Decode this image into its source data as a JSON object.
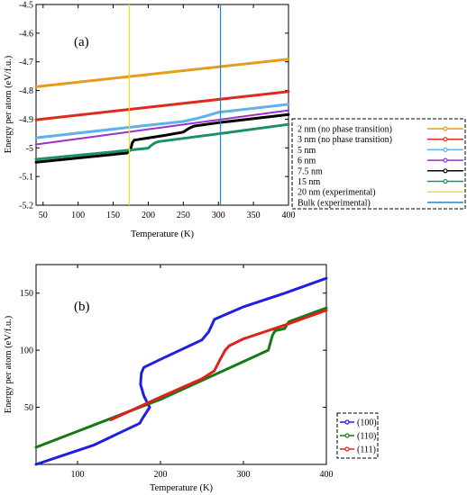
{
  "chart_data": [
    {
      "type": "line",
      "panel_label": "(a)",
      "xlabel": "Temperature (K)",
      "ylabel": "Energy per atom (eV/f.u.)",
      "xlim": [
        40,
        400
      ],
      "ylim": [
        -5.2,
        -4.5
      ],
      "xticks": [
        50,
        100,
        150,
        200,
        250,
        300,
        350,
        400
      ],
      "yticks": [
        -5.2,
        -5.1,
        -5.0,
        -4.9,
        -4.8,
        -4.7,
        -4.6,
        -4.5
      ],
      "xtick_labels": [
        "50",
        "100",
        "150",
        "200",
        "250",
        "300",
        "350",
        "400"
      ],
      "ytick_labels": [
        "-5.2",
        "-5.1",
        "-5",
        "-4.9",
        "-4.8",
        "-4.7",
        "-4.6",
        "-4.5"
      ],
      "legend_placement": "outside right",
      "series": [
        {
          "name": "2 nm (no phase transition)",
          "color": "#e59b1c",
          "width": 3,
          "x": [
            40,
            400
          ],
          "y": [
            -4.787,
            -4.691
          ]
        },
        {
          "name": "3 nm (no phase transition)",
          "color": "#e02a1f",
          "width": 3,
          "x": [
            40,
            400
          ],
          "y": [
            -4.902,
            -4.804
          ]
        },
        {
          "name": "5 nm",
          "color": "#5eb1ea",
          "width": 3,
          "x": [
            40,
            200,
            250,
            270,
            285,
            300,
            400
          ],
          "y": [
            -4.965,
            -4.921,
            -4.908,
            -4.897,
            -4.887,
            -4.876,
            -4.848
          ]
        },
        {
          "name": "6 nm",
          "color": "#9932cc",
          "width": 2,
          "x": [
            40,
            400
          ],
          "y": [
            -4.988,
            -4.869
          ]
        },
        {
          "name": "7.5 nm",
          "color": "#000000",
          "width": 3,
          "x": [
            40,
            170,
            175,
            177,
            180,
            220,
            250,
            258,
            265,
            300,
            400
          ],
          "y": [
            -5.05,
            -5.018,
            -5.005,
            -4.983,
            -4.973,
            -4.958,
            -4.945,
            -4.932,
            -4.924,
            -4.912,
            -4.884
          ]
        },
        {
          "name": "15 nm",
          "color": "#1e8f6b",
          "width": 3,
          "x": [
            40,
            150,
            200,
            205,
            210,
            215,
            300,
            400
          ],
          "y": [
            -5.04,
            -5.014,
            -5.001,
            -4.99,
            -4.982,
            -4.978,
            -4.951,
            -4.918
          ]
        },
        {
          "name": "20 nm (experimental)",
          "color": "#f2dc1c",
          "width": 1.2,
          "vertical": true,
          "x": [
            173
          ]
        },
        {
          "name": "Bulk (experimental)",
          "color": "#2a86c4",
          "width": 1.2,
          "vertical": true,
          "x": [
            303
          ]
        }
      ]
    },
    {
      "type": "line",
      "panel_label": "(b)",
      "xlabel": "Temperature (K)",
      "ylabel": "Energy per atom (eV/f.u.)",
      "xlim": [
        50,
        400
      ],
      "ylim": [
        0,
        175
      ],
      "xticks": [
        100,
        200,
        300,
        400
      ],
      "yticks": [
        50,
        100,
        150
      ],
      "xtick_labels": [
        "100",
        "200",
        "300",
        "400"
      ],
      "ytick_labels": [
        "50",
        "100",
        "150"
      ],
      "legend_placement": "outside right",
      "series": [
        {
          "name": "(100)",
          "color": "#1f1fe0",
          "width": 3,
          "x": [
            50,
            120,
            175,
            178,
            187,
            180,
            176,
            177,
            180,
            200,
            250,
            258,
            262,
            265,
            300,
            350,
            400
          ],
          "y": [
            0,
            17,
            36,
            40,
            50,
            60,
            70,
            80,
            85,
            92,
            109,
            116,
            122,
            127,
            138,
            150,
            163
          ]
        },
        {
          "name": "(110)",
          "color": "#157a15",
          "width": 3,
          "x": [
            50,
            200,
            300,
            330,
            335,
            338,
            350,
            352,
            355,
            400
          ],
          "y": [
            15,
            57,
            90,
            100,
            113,
            117,
            119,
            122,
            125,
            137
          ]
        },
        {
          "name": "(111)",
          "color": "#e0201a",
          "width": 3,
          "x": [
            140,
            200,
            250,
            265,
            272,
            278,
            283,
            300,
            350,
            400
          ],
          "y": [
            39,
            59,
            75,
            82,
            92,
            100,
            104,
            110,
            122,
            135
          ]
        }
      ]
    }
  ]
}
